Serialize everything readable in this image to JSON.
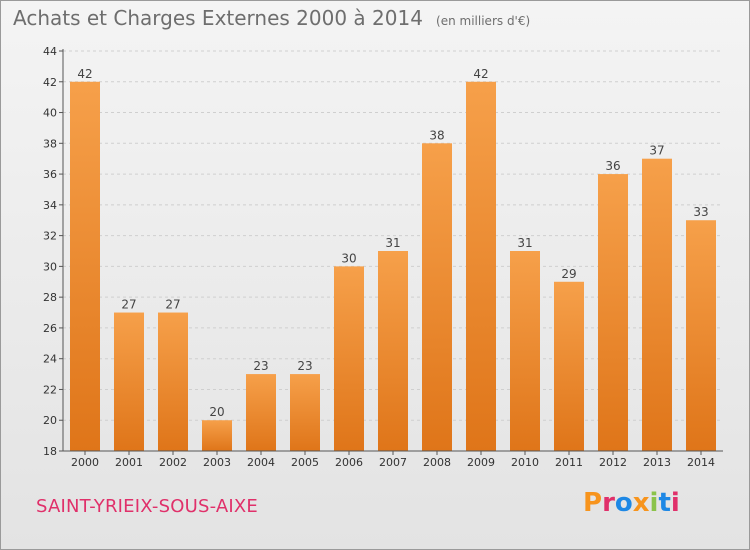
{
  "header": {
    "title": "Achats et Charges Externes 2000 à 2014",
    "subtitle": "(en milliers d'€)"
  },
  "footer": {
    "location": "SAINT-YRIEIX-SOUS-AIXE",
    "brand": "Proxiti",
    "brand_colors": [
      "#f7941d",
      "#e0306a",
      "#1e88e5",
      "#f7941d",
      "#8bc34a",
      "#1e88e5",
      "#e0306a"
    ]
  },
  "colors": {
    "bar_top": "#f6a04a",
    "bar_bottom": "#df7519",
    "grid": "#cfcfcf",
    "axis": "#555555"
  },
  "chart_data": {
    "type": "bar",
    "title": "Achats et Charges Externes 2000 à 2014",
    "subtitle": "(en milliers d'€)",
    "categories": [
      "2000",
      "2001",
      "2002",
      "2003",
      "2004",
      "2005",
      "2006",
      "2007",
      "2008",
      "2009",
      "2010",
      "2011",
      "2012",
      "2013",
      "2014"
    ],
    "values": [
      42,
      27,
      27,
      20,
      23,
      23,
      30,
      31,
      38,
      42,
      31,
      29,
      36,
      37,
      33
    ],
    "ylim": [
      18,
      44
    ],
    "yticks": [
      18,
      20,
      22,
      24,
      26,
      28,
      30,
      32,
      34,
      36,
      38,
      40,
      42,
      44
    ],
    "grid": true,
    "xlabel": "",
    "ylabel": ""
  }
}
